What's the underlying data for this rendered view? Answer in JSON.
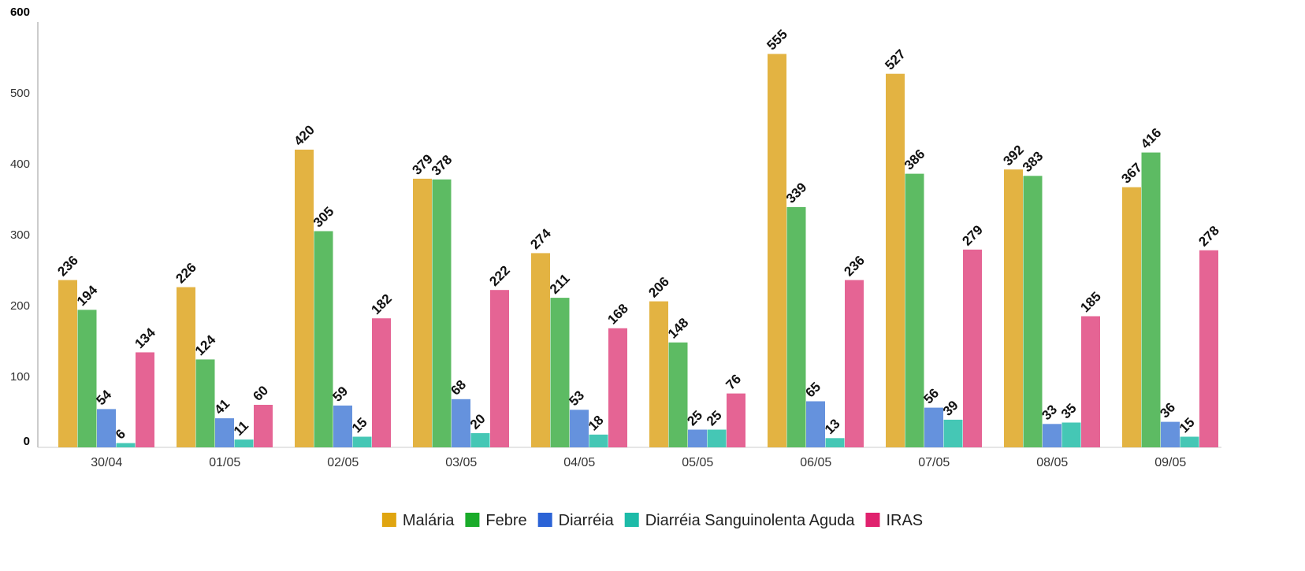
{
  "chart_data": {
    "type": "bar",
    "title": "",
    "xlabel": "",
    "ylabel": "",
    "ylim": [
      0,
      600
    ],
    "yticks": [
      "0",
      "100",
      "200",
      "300",
      "400",
      "500",
      "600"
    ],
    "grid": false,
    "legend_position": "bottom-center",
    "categories": [
      "30/04",
      "01/05",
      "02/05",
      "03/05",
      "04/05",
      "05/05",
      "06/05",
      "07/05",
      "08/05",
      "09/05"
    ],
    "series": [
      {
        "name": "Malária",
        "color": "#e3b342",
        "legend_color": "#e0a510",
        "values": [
          236,
          226,
          420,
          379,
          274,
          206,
          555,
          527,
          392,
          367
        ]
      },
      {
        "name": "Febre",
        "color": "#5dbb63",
        "legend_color": "#1aab2a",
        "values": [
          194,
          124,
          305,
          378,
          211,
          148,
          339,
          386,
          383,
          416
        ]
      },
      {
        "name": "Diarréia",
        "color": "#6592dd",
        "legend_color": "#2b63d6",
        "values": [
          54,
          41,
          59,
          68,
          53,
          25,
          65,
          56,
          33,
          36
        ]
      },
      {
        "name": "Diarréia Sanguinolenta Aguda",
        "color": "#45c7b5",
        "legend_color": "#1dbba8",
        "values": [
          6,
          11,
          15,
          20,
          18,
          25,
          13,
          39,
          35,
          15
        ]
      },
      {
        "name": "IRAS",
        "color": "#e56494",
        "legend_color": "#e0226e",
        "values": [
          134,
          60,
          182,
          222,
          168,
          76,
          236,
          279,
          185,
          278
        ]
      }
    ]
  }
}
